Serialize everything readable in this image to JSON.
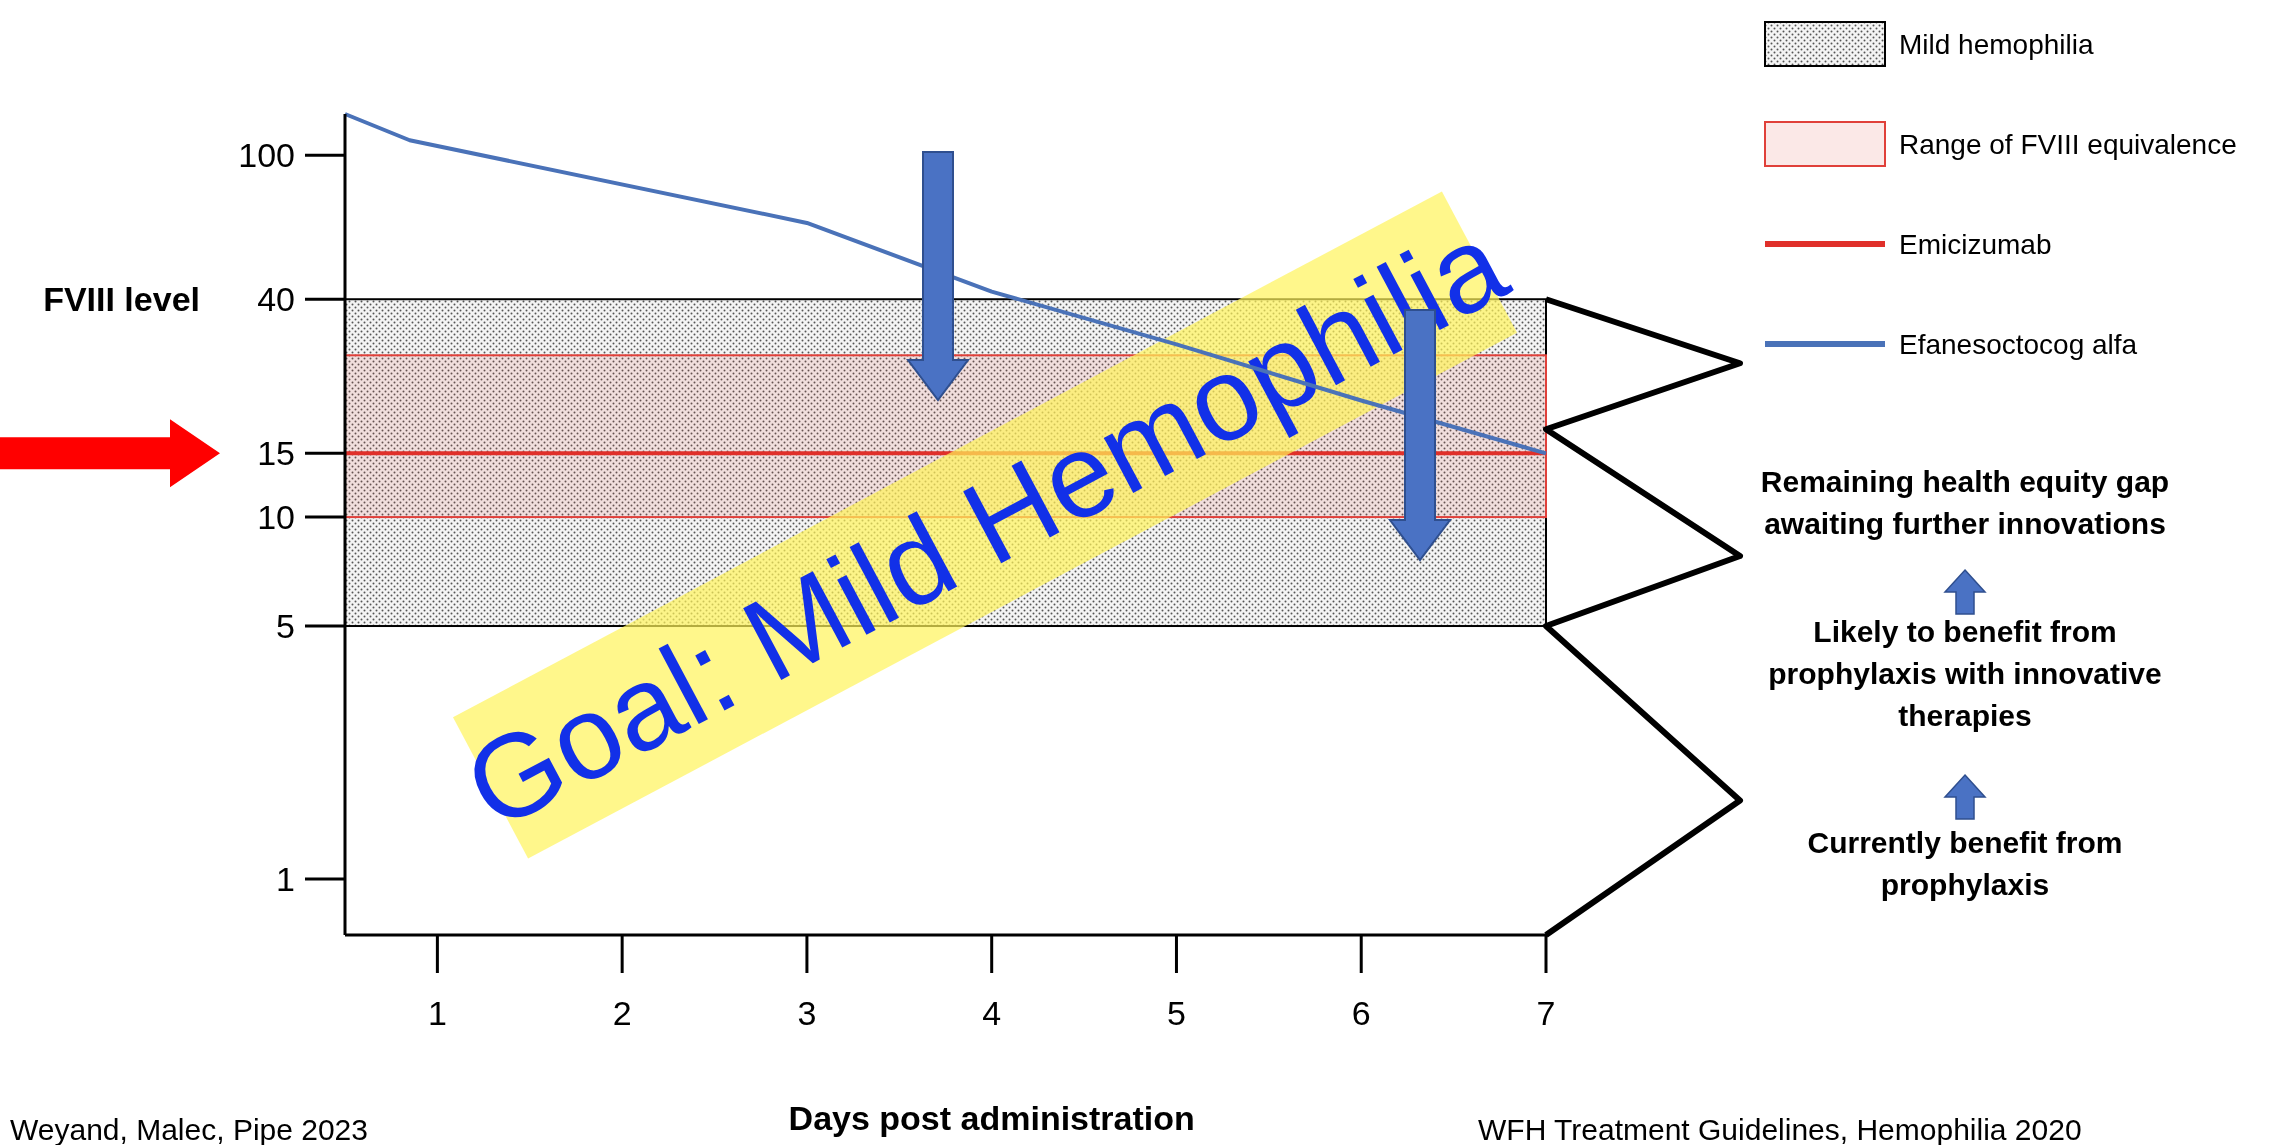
{
  "chart_data": {
    "type": "line",
    "xlabel": "Days post administration",
    "ylabel": "FVIII level",
    "x": [
      0.5,
      0.85,
      3,
      4,
      5,
      6,
      7
    ],
    "series": [
      {
        "name": "Efanesoctocog alfa",
        "color": "#4a72b8",
        "values": [
          130,
          110,
          65,
          42,
          30,
          21,
          15
        ]
      }
    ],
    "xlim": [
      0.5,
      7
    ],
    "xticks": [
      1,
      2,
      3,
      4,
      5,
      6,
      7
    ],
    "ylim": [
      0.7,
      130
    ],
    "yticks": [
      1,
      5,
      10,
      15,
      40,
      100
    ],
    "log": "y",
    "bands": [
      {
        "axis": "y",
        "from": 5,
        "to": 40,
        "label": "Mild hemophilia",
        "color": "#000000"
      },
      {
        "axis": "y",
        "from": 10,
        "to": 28,
        "label": "Range of FVIII equivalence",
        "color": "#e0403a"
      }
    ],
    "ref_lines": [
      {
        "axis": "y",
        "value": 15,
        "label": "Emicizumab",
        "color": "#e0302a"
      }
    ],
    "legend": "top right",
    "grid": false,
    "annotations": [
      "Goal: Mild Hemophilia",
      "Remaining health equity gap\nawaiting further innovations",
      "Likely to benefit from\nprophylaxis with innovative\ntherapies",
      "Currently benefit from\nprophylaxis",
      "Weyand, Malec, Pipe 2023",
      "WFH Treatment Guidelines, Hemophilia 2020"
    ]
  }
}
